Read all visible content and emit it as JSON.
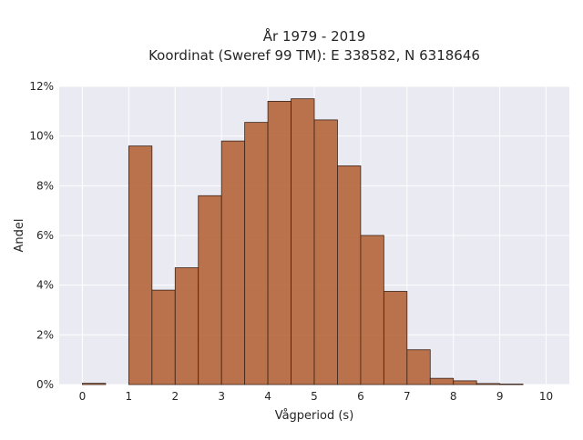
{
  "chart_data": {
    "type": "bar",
    "title_line1": "År 1979 - 2019",
    "title_line2": "Koordinat (Sweref 99 TM): E 338582, N 6318646",
    "xlabel": "Vågperiod (s)",
    "ylabel": "Andel",
    "xlim": [
      -0.5,
      10.5
    ],
    "ylim": [
      0,
      12
    ],
    "x_ticks": [
      "0",
      "1",
      "2",
      "3",
      "4",
      "5",
      "6",
      "7",
      "8",
      "9",
      "10"
    ],
    "y_ticks": [
      "0%",
      "2%",
      "4%",
      "6%",
      "8%",
      "10%",
      "12%"
    ],
    "bin_width": 0.5,
    "bins": [
      {
        "start": 0.0,
        "value": 0.05
      },
      {
        "start": 0.5,
        "value": 0.0
      },
      {
        "start": 1.0,
        "value": 9.6
      },
      {
        "start": 1.5,
        "value": 3.8
      },
      {
        "start": 2.0,
        "value": 4.7
      },
      {
        "start": 2.5,
        "value": 7.6
      },
      {
        "start": 3.0,
        "value": 9.8
      },
      {
        "start": 3.5,
        "value": 10.55
      },
      {
        "start": 4.0,
        "value": 11.4
      },
      {
        "start": 4.5,
        "value": 11.5
      },
      {
        "start": 5.0,
        "value": 10.65
      },
      {
        "start": 5.5,
        "value": 8.8
      },
      {
        "start": 6.0,
        "value": 6.0
      },
      {
        "start": 6.5,
        "value": 3.75
      },
      {
        "start": 7.0,
        "value": 1.4
      },
      {
        "start": 7.5,
        "value": 0.25
      },
      {
        "start": 8.0,
        "value": 0.15
      },
      {
        "start": 8.5,
        "value": 0.04
      },
      {
        "start": 9.0,
        "value": 0.02
      }
    ],
    "grid": true,
    "bar_color": "#b5653a",
    "bar_edge_color": "#3a2318",
    "background_color": "#eaeaf2"
  }
}
